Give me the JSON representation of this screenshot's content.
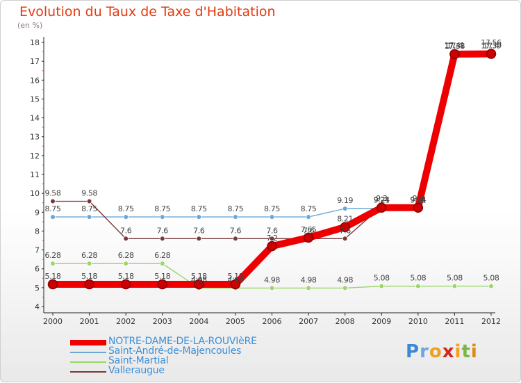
{
  "header": {
    "title": "Evolution du Taux de Taxe d'Habitation",
    "subtitle": "(en %)"
  },
  "logo": {
    "text": "Proxiti"
  },
  "chart_data": {
    "type": "line",
    "title": "Evolution du Taux de Taxe d'Habitation",
    "ylabel": "(en %)",
    "xlabel": "",
    "x": [
      "2000",
      "2001",
      "2002",
      "2003",
      "2004",
      "2005",
      "2006",
      "2007",
      "2008",
      "2009",
      "2010",
      "2011",
      "2012"
    ],
    "ylim": [
      4,
      18
    ],
    "yticks": [
      "4",
      "5",
      "6",
      "7",
      "8",
      "9",
      "10",
      "11",
      "12",
      "13",
      "14",
      "15",
      "16",
      "17",
      "18"
    ],
    "grid": false,
    "legend_position": "bottom-left",
    "series": [
      {
        "name": "NOTRE-DAME-DE-LA-ROUVIèRE",
        "color": "#ee0000",
        "values": [
          5.18,
          5.18,
          5.18,
          5.18,
          5.18,
          5.18,
          7.2,
          7.65,
          8.21,
          9.24,
          9.24,
          17.38,
          17.39
        ],
        "labels": [
          "5.18",
          "5.18",
          "5.18",
          "5.18",
          "5.18",
          "5.18",
          "7.2",
          "7.65",
          "8.21",
          "9.24",
          "9.24",
          "17.38",
          "17.39"
        ]
      },
      {
        "name": "Saint-André-de-Majencoules",
        "color": "#6aa6d6",
        "values": [
          8.75,
          8.75,
          8.75,
          8.75,
          8.75,
          8.75,
          8.75,
          8.75,
          9.19,
          9.21,
          9.21,
          17.41,
          17.56
        ],
        "labels": [
          "8.75",
          "8.75",
          "8.75",
          "8.75",
          "8.75",
          "8.75",
          "8.75",
          "8.75",
          "9.19",
          "9.21",
          "9.21",
          "17.41",
          "17.56"
        ]
      },
      {
        "name": "Saint-Martial",
        "color": "#9bd668",
        "values": [
          6.28,
          6.28,
          6.28,
          6.28,
          4.98,
          4.98,
          4.98,
          4.98,
          4.98,
          5.08,
          5.08,
          5.08,
          5.08
        ],
        "labels": [
          "6.28",
          "6.28",
          "6.28",
          "6.28",
          "4.98",
          "4.98",
          "4.98",
          "4.98",
          "4.98",
          "5.08",
          "5.08",
          "5.08",
          "5.08"
        ]
      },
      {
        "name": "Valleraugue",
        "color": "#7a3838",
        "values": [
          9.58,
          9.58,
          7.6,
          7.6,
          7.6,
          7.6,
          7.6,
          7.6,
          7.6,
          9.3,
          9.3,
          17.4,
          17.4
        ],
        "labels": [
          "9.58",
          "9.58",
          "7.6",
          "7.6",
          "7.6",
          "7.6",
          "7.6",
          "7.6",
          "7.6",
          "9.3",
          "9.3",
          "17.4",
          "17.4"
        ]
      }
    ]
  }
}
